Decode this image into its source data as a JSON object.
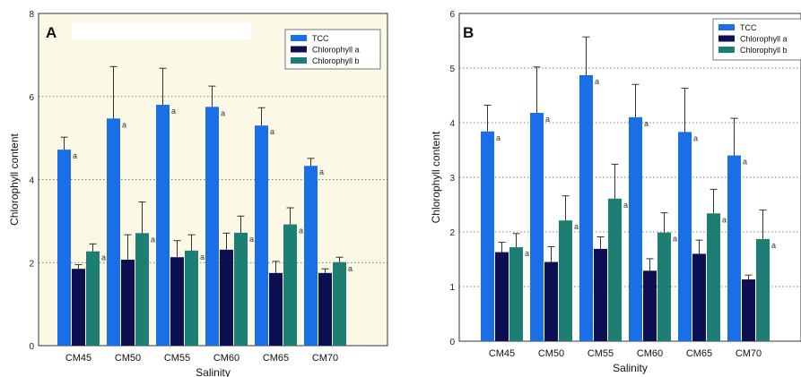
{
  "colors": {
    "TCC": "#1a6ee6",
    "Chlorophyll a": "#0c0f52",
    "Chlorophyll b": "#1d7f74",
    "plot_bg_A": "#fbf8e6",
    "plot_bg_B": "#ffffff"
  },
  "chart_data": [
    {
      "type": "bar",
      "panel_label": "A",
      "xlabel": "Salinity",
      "ylabel": "Chlorophyll content",
      "ylim": [
        0,
        8
      ],
      "yticks": [
        "0",
        "2",
        "4",
        "6",
        "8"
      ],
      "grid": true,
      "legend": "top-right",
      "categories": [
        "CM45",
        "CM50",
        "CM55",
        "CM60",
        "CM65",
        "CM70"
      ],
      "series": [
        {
          "name": "TCC",
          "values": [
            4.72,
            5.47,
            5.8,
            5.75,
            5.3,
            4.33
          ],
          "errors": [
            0.3,
            1.25,
            0.88,
            0.5,
            0.43,
            0.18
          ],
          "labels": [
            "a",
            "a",
            "a",
            "a",
            "a",
            "a"
          ]
        },
        {
          "name": "Chlorophyll a",
          "values": [
            1.85,
            2.07,
            2.13,
            2.31,
            1.75,
            1.75
          ],
          "errors": [
            0.1,
            0.6,
            0.4,
            0.4,
            0.28,
            0.1
          ],
          "labels": [
            "a",
            "a",
            "a",
            "a",
            "a",
            "a"
          ]
        },
        {
          "name": "Chlorophyll b",
          "values": [
            2.27,
            2.71,
            2.29,
            2.72,
            2.92,
            2.01
          ],
          "errors": [
            0.18,
            0.75,
            0.38,
            0.4,
            0.4,
            0.12
          ],
          "labels": [
            "a",
            "a",
            "a",
            "a",
            "a",
            "a"
          ]
        }
      ]
    },
    {
      "type": "bar",
      "panel_label": "B",
      "xlabel": "Salinity",
      "ylabel": "Chlorophyll content",
      "ylim": [
        0,
        6
      ],
      "yticks": [
        "0",
        "1",
        "2",
        "3",
        "4",
        "5",
        "6"
      ],
      "grid": true,
      "legend": "top-right",
      "categories": [
        "CM45",
        "CM50",
        "CM55",
        "CM60",
        "CM65",
        "CM70"
      ],
      "series": [
        {
          "name": "TCC",
          "values": [
            3.84,
            4.18,
            4.87,
            4.1,
            3.83,
            3.4
          ],
          "errors": [
            0.48,
            0.84,
            0.7,
            0.6,
            0.8,
            0.68
          ],
          "labels": [
            "a",
            "a",
            "a",
            "a",
            "a",
            "a"
          ]
        },
        {
          "name": "Chlorophyll a",
          "values": [
            1.63,
            1.45,
            1.69,
            1.29,
            1.6,
            1.13
          ],
          "errors": [
            0.18,
            0.28,
            0.22,
            0.22,
            0.25,
            0.08
          ],
          "labels": [
            "a",
            "a",
            "a",
            "a",
            "a",
            "a"
          ]
        },
        {
          "name": "Chlorophyll b",
          "values": [
            1.72,
            2.21,
            2.61,
            1.99,
            2.34,
            1.87
          ],
          "errors": [
            0.25,
            0.45,
            0.63,
            0.36,
            0.44,
            0.53
          ],
          "labels": [
            "a",
            "a",
            "a",
            "a",
            "a",
            "a"
          ]
        }
      ]
    }
  ]
}
